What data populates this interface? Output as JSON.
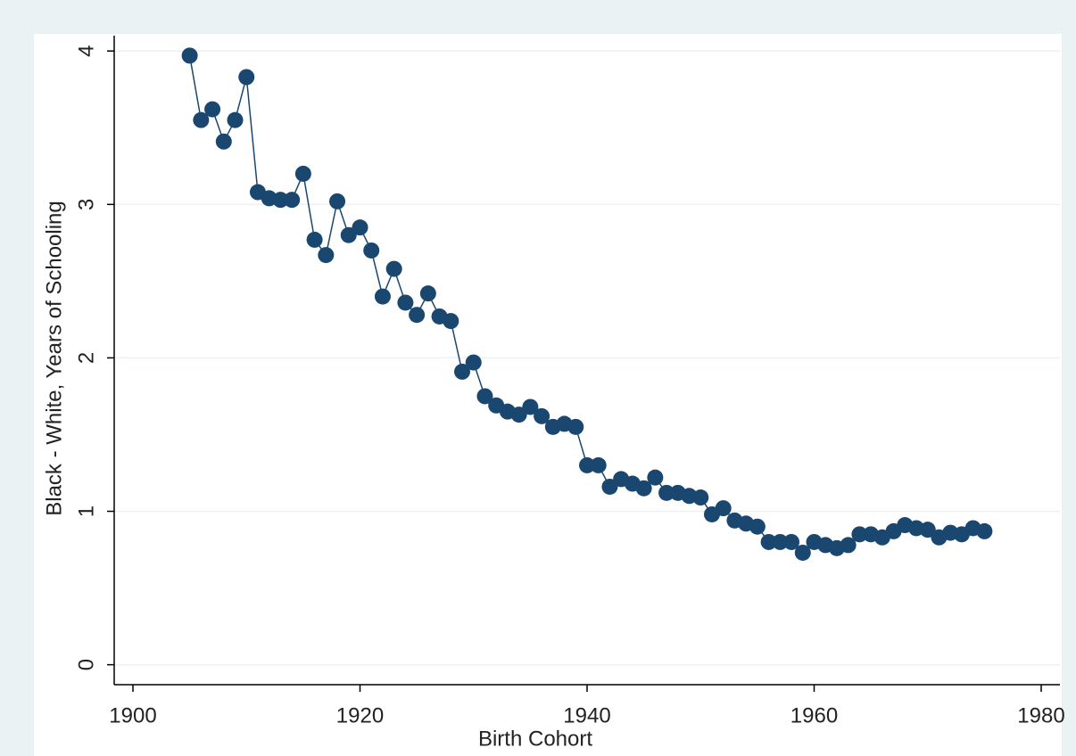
{
  "chart_data": {
    "type": "line",
    "xlabel": "Birth Cohort",
    "ylabel": "Black - White, Years of Schooling",
    "x": [
      1905,
      1906,
      1907,
      1908,
      1909,
      1910,
      1911,
      1912,
      1913,
      1914,
      1915,
      1916,
      1917,
      1918,
      1919,
      1920,
      1921,
      1922,
      1923,
      1924,
      1925,
      1926,
      1927,
      1928,
      1929,
      1930,
      1931,
      1932,
      1933,
      1934,
      1935,
      1936,
      1937,
      1938,
      1939,
      1940,
      1941,
      1942,
      1943,
      1944,
      1945,
      1946,
      1947,
      1948,
      1949,
      1950,
      1951,
      1952,
      1953,
      1954,
      1955,
      1956,
      1957,
      1958,
      1959,
      1960,
      1961,
      1962,
      1963,
      1964,
      1965,
      1966,
      1967,
      1968,
      1969,
      1970,
      1971,
      1972,
      1973,
      1974,
      1975
    ],
    "values": [
      3.97,
      3.55,
      3.62,
      3.41,
      3.55,
      3.83,
      3.08,
      3.04,
      3.03,
      3.03,
      3.2,
      2.77,
      2.67,
      3.02,
      2.8,
      2.85,
      2.7,
      2.4,
      2.58,
      2.36,
      2.28,
      2.42,
      2.27,
      2.24,
      1.91,
      1.97,
      1.75,
      1.69,
      1.65,
      1.63,
      1.68,
      1.62,
      1.55,
      1.57,
      1.55,
      1.3,
      1.3,
      1.16,
      1.21,
      1.18,
      1.15,
      1.22,
      1.12,
      1.12,
      1.1,
      1.09,
      0.98,
      1.02,
      0.94,
      0.92,
      0.9,
      0.8,
      0.8,
      0.8,
      0.73,
      0.8,
      0.78,
      0.76,
      0.78,
      0.85,
      0.85,
      0.83,
      0.87,
      0.91,
      0.89,
      0.88,
      0.83,
      0.86,
      0.85,
      0.89,
      0.87
    ],
    "color": "#1a476f",
    "xlim": [
      1898.35,
      1981.65
    ],
    "xticks": [
      1900,
      1920,
      1940,
      1960,
      1980
    ],
    "ylim": [
      -0.13,
      4.1
    ],
    "yticks": [
      0,
      1,
      2,
      3,
      4
    ],
    "grid": true
  }
}
